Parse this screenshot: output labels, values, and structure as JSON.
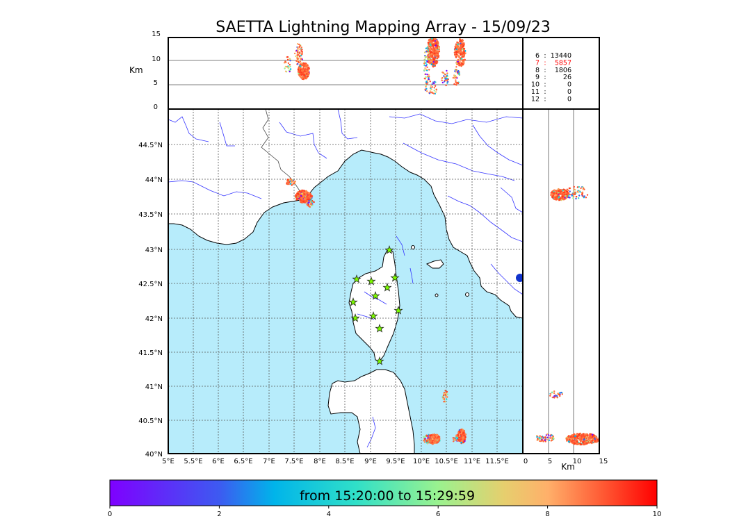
{
  "title": "SAETTA Lightning Mapping Array - 15/09/23",
  "colors": {
    "sea": "#b7ecfb",
    "land": "#ffffff",
    "rivers": "#3333ff",
    "station_star": "#7cfc00",
    "grid": "#555555",
    "highlight_count": "#ff0000"
  },
  "altitude_panel": {
    "ylabel": "Km",
    "yticks": [
      "15",
      "10",
      "5",
      "0"
    ]
  },
  "side_panel": {
    "xlabel": "Km",
    "xticks": [
      "0",
      "5",
      "10",
      "15"
    ]
  },
  "map": {
    "lon_ticks": [
      "5°E",
      "5.5°E",
      "6°E",
      "6.5°E",
      "7°E",
      "7.5°E",
      "8°E",
      "8.5°E",
      "9°E",
      "9.5°E",
      "10°E",
      "10.5°E",
      "11°E",
      "11.5°E"
    ],
    "lat_ticks": [
      "44.5°N",
      "44°N",
      "43.5°N",
      "43°N",
      "42.5°N",
      "42°N",
      "41.5°N",
      "41°N",
      "40.5°N",
      "40°N"
    ]
  },
  "station_counts": [
    {
      "stations": "6",
      "sep": ":",
      "count": "13440",
      "highlight": false
    },
    {
      "stations": "7",
      "sep": ":",
      "count": "5857",
      "highlight": true
    },
    {
      "stations": "8",
      "sep": ":",
      "count": "1806",
      "highlight": false
    },
    {
      "stations": "9",
      "sep": ":",
      "count": "26",
      "highlight": false
    },
    {
      "stations": "10",
      "sep": ":",
      "count": "0",
      "highlight": false
    },
    {
      "stations": "11",
      "sep": ":",
      "count": "0",
      "highlight": false
    },
    {
      "stations": "12",
      "sep": ":",
      "count": "0",
      "highlight": false
    }
  ],
  "colorbar": {
    "label": "from 15:20:00 to 15:29:59",
    "ticks": [
      "0",
      "2",
      "4",
      "6",
      "8",
      "10"
    ]
  }
}
